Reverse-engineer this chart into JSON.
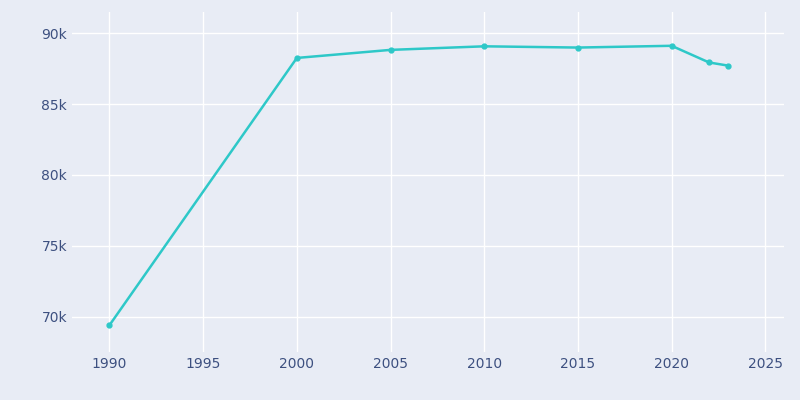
{
  "years": [
    1990,
    2000,
    2005,
    2010,
    2015,
    2020,
    2022,
    2023
  ],
  "population": [
    69392,
    88257,
    88826,
    89078,
    88990,
    89115,
    87938,
    87719
  ],
  "line_color": "#2EC8C8",
  "marker_color": "#2EC8C8",
  "bg_color": "#E8ECF5",
  "grid_color": "#FFFFFF",
  "text_color": "#3D5080",
  "xlim": [
    1988,
    2026
  ],
  "ylim": [
    67500,
    91500
  ],
  "xticks": [
    1990,
    1995,
    2000,
    2005,
    2010,
    2015,
    2020,
    2025
  ],
  "yticks": [
    70000,
    75000,
    80000,
    85000,
    90000
  ],
  "figsize": [
    8.0,
    4.0
  ],
  "dpi": 100,
  "linewidth": 1.8,
  "markersize": 3.5
}
